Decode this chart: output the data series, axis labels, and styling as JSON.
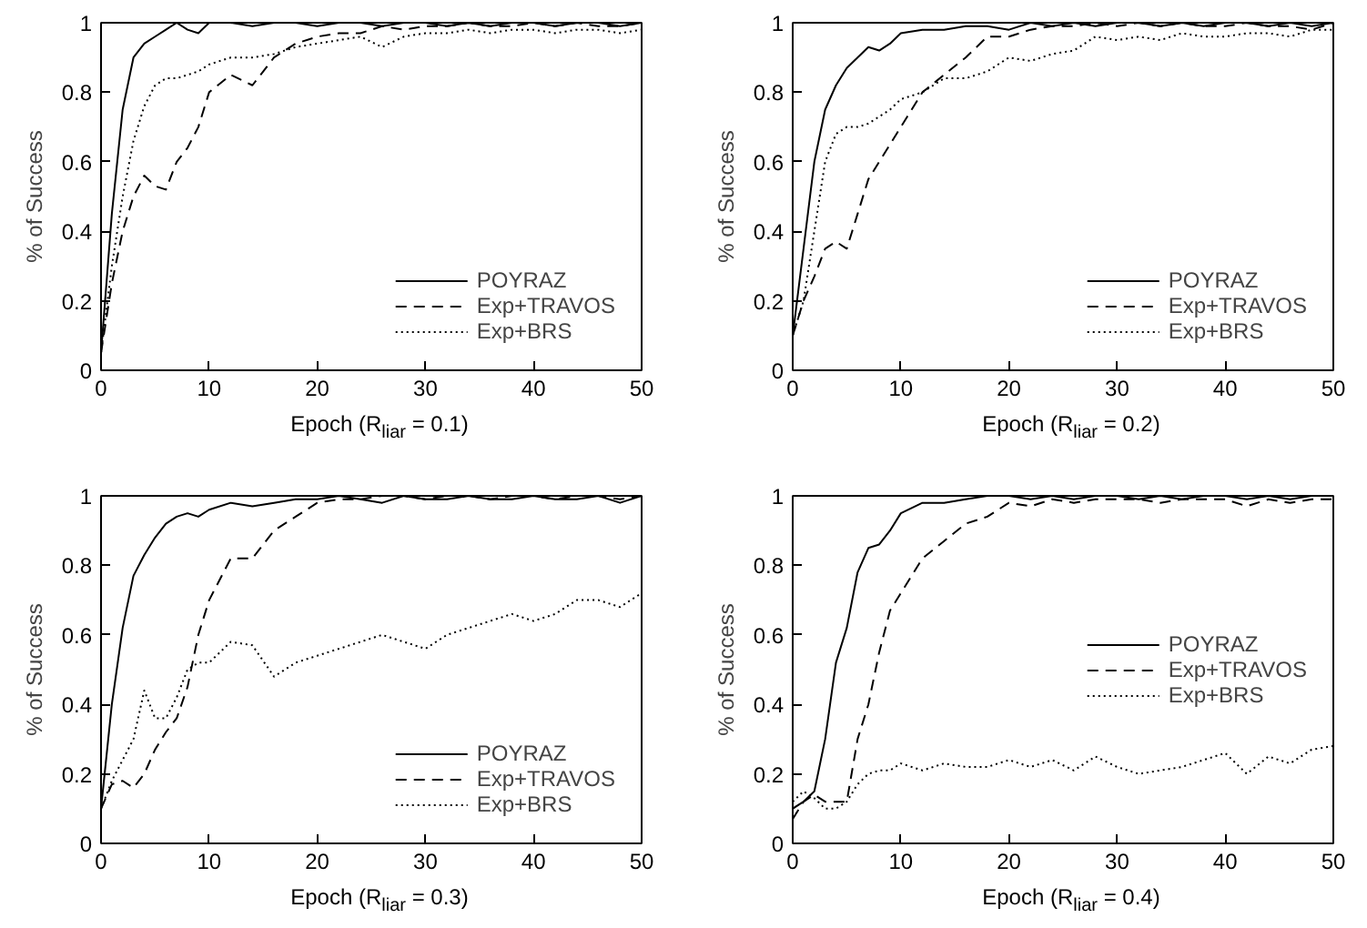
{
  "chart_data": [
    {
      "type": "line",
      "xlabel": "Epoch (R$_{liar}$ = 0.1)",
      "ylabel": "% of Success",
      "xlim": [
        0,
        50
      ],
      "ylim": [
        0,
        1
      ],
      "xticks": [
        0,
        10,
        20,
        30,
        40,
        50
      ],
      "yticks": [
        0,
        0.2,
        0.4,
        0.6,
        0.8,
        1
      ],
      "grid": false,
      "legend": "bottom right",
      "x": [
        0,
        1,
        2,
        3,
        4,
        5,
        6,
        7,
        8,
        9,
        10,
        12,
        14,
        16,
        18,
        20,
        22,
        24,
        26,
        28,
        30,
        32,
        34,
        36,
        38,
        40,
        42,
        44,
        46,
        48,
        50
      ],
      "series": [
        {
          "name": "POYRAZ",
          "color": "#000000",
          "line_style": "solid",
          "values": [
            0.05,
            0.45,
            0.75,
            0.9,
            0.94,
            0.96,
            0.98,
            1.0,
            0.98,
            0.97,
            1.0,
            1.0,
            0.99,
            1.0,
            1.0,
            0.99,
            1.0,
            1.0,
            0.99,
            1.0,
            1.0,
            0.99,
            1.0,
            0.99,
            1.0,
            1.0,
            0.99,
            1.0,
            1.0,
            0.99,
            1.0
          ]
        },
        {
          "name": "Exp+TRAVOS",
          "color": "#000000",
          "line_style": "dashed",
          "values": [
            0.05,
            0.25,
            0.4,
            0.5,
            0.56,
            0.53,
            0.52,
            0.6,
            0.64,
            0.7,
            0.8,
            0.85,
            0.82,
            0.9,
            0.94,
            0.96,
            0.97,
            0.97,
            0.99,
            0.98,
            0.99,
            0.99,
            1.0,
            0.99,
            0.99,
            1.0,
            0.99,
            1.0,
            0.99,
            0.99,
            1.0
          ]
        },
        {
          "name": "Exp+BRS",
          "color": "#000000",
          "line_style": "dotted",
          "values": [
            0.05,
            0.3,
            0.5,
            0.66,
            0.76,
            0.82,
            0.84,
            0.84,
            0.85,
            0.86,
            0.88,
            0.9,
            0.9,
            0.91,
            0.93,
            0.94,
            0.95,
            0.96,
            0.93,
            0.96,
            0.97,
            0.97,
            0.98,
            0.97,
            0.98,
            0.98,
            0.97,
            0.98,
            0.98,
            0.97,
            0.98
          ]
        }
      ]
    },
    {
      "type": "line",
      "xlabel": "Epoch (R$_{liar}$ = 0.2)",
      "ylabel": "% of Success",
      "xlim": [
        0,
        50
      ],
      "ylim": [
        0,
        1
      ],
      "xticks": [
        0,
        10,
        20,
        30,
        40,
        50
      ],
      "yticks": [
        0,
        0.2,
        0.4,
        0.6,
        0.8,
        1
      ],
      "grid": false,
      "legend": "bottom right",
      "x": [
        0,
        1,
        2,
        3,
        4,
        5,
        6,
        7,
        8,
        9,
        10,
        12,
        14,
        16,
        18,
        20,
        22,
        24,
        26,
        28,
        30,
        32,
        34,
        36,
        38,
        40,
        42,
        44,
        46,
        48,
        50
      ],
      "series": [
        {
          "name": "POYRAZ",
          "color": "#000000",
          "line_style": "solid",
          "values": [
            0.1,
            0.35,
            0.6,
            0.75,
            0.82,
            0.87,
            0.9,
            0.93,
            0.92,
            0.94,
            0.97,
            0.98,
            0.98,
            0.99,
            0.99,
            0.98,
            1.0,
            0.99,
            1.0,
            0.99,
            1.0,
            1.0,
            0.99,
            1.0,
            0.99,
            1.0,
            1.0,
            0.99,
            1.0,
            0.99,
            1.0
          ]
        },
        {
          "name": "Exp+TRAVOS",
          "color": "#000000",
          "line_style": "dashed",
          "values": [
            0.1,
            0.2,
            0.27,
            0.35,
            0.37,
            0.35,
            0.45,
            0.55,
            0.6,
            0.65,
            0.7,
            0.8,
            0.85,
            0.9,
            0.96,
            0.96,
            0.98,
            0.99,
            0.99,
            1.0,
            0.99,
            1.0,
            0.99,
            1.0,
            0.99,
            0.99,
            1.0,
            0.99,
            0.99,
            0.98,
            1.0
          ]
        },
        {
          "name": "Exp+BRS",
          "color": "#000000",
          "line_style": "dotted",
          "values": [
            0.1,
            0.2,
            0.4,
            0.6,
            0.68,
            0.7,
            0.7,
            0.71,
            0.73,
            0.75,
            0.78,
            0.8,
            0.84,
            0.84,
            0.86,
            0.9,
            0.89,
            0.91,
            0.92,
            0.96,
            0.95,
            0.96,
            0.95,
            0.97,
            0.96,
            0.96,
            0.97,
            0.97,
            0.96,
            0.98,
            0.98
          ]
        }
      ]
    },
    {
      "type": "line",
      "xlabel": "Epoch (R$_{liar}$ = 0.3)",
      "ylabel": "% of Success",
      "xlim": [
        0,
        50
      ],
      "ylim": [
        0,
        1
      ],
      "xticks": [
        0,
        10,
        20,
        30,
        40,
        50
      ],
      "yticks": [
        0,
        0.2,
        0.4,
        0.6,
        0.8,
        1
      ],
      "grid": false,
      "legend": "bottom right",
      "x": [
        0,
        1,
        2,
        3,
        4,
        5,
        6,
        7,
        8,
        9,
        10,
        12,
        14,
        16,
        18,
        20,
        22,
        24,
        26,
        28,
        30,
        32,
        34,
        36,
        38,
        40,
        42,
        44,
        46,
        48,
        50
      ],
      "series": [
        {
          "name": "POYRAZ",
          "color": "#000000",
          "line_style": "solid",
          "values": [
            0.1,
            0.4,
            0.62,
            0.77,
            0.83,
            0.88,
            0.92,
            0.94,
            0.95,
            0.94,
            0.96,
            0.98,
            0.97,
            0.98,
            0.99,
            0.99,
            1.0,
            0.99,
            0.98,
            1.0,
            0.99,
            0.99,
            1.0,
            0.99,
            0.99,
            1.0,
            0.99,
            0.99,
            1.0,
            0.98,
            1.0
          ]
        },
        {
          "name": "Exp+TRAVOS",
          "color": "#000000",
          "line_style": "dashed",
          "values": [
            0.1,
            0.17,
            0.18,
            0.16,
            0.2,
            0.27,
            0.32,
            0.36,
            0.45,
            0.6,
            0.7,
            0.82,
            0.82,
            0.9,
            0.94,
            0.98,
            0.99,
            0.99,
            1.0,
            1.0,
            0.99,
            1.0,
            1.0,
            0.99,
            1.0,
            1.0,
            0.99,
            1.0,
            1.0,
            0.99,
            1.0
          ]
        },
        {
          "name": "Exp+BRS",
          "color": "#000000",
          "line_style": "dotted",
          "values": [
            0.1,
            0.18,
            0.24,
            0.3,
            0.44,
            0.36,
            0.36,
            0.42,
            0.5,
            0.52,
            0.52,
            0.58,
            0.57,
            0.48,
            0.52,
            0.54,
            0.56,
            0.58,
            0.6,
            0.58,
            0.56,
            0.6,
            0.62,
            0.64,
            0.66,
            0.64,
            0.66,
            0.7,
            0.7,
            0.68,
            0.72
          ]
        }
      ]
    },
    {
      "type": "line",
      "xlabel": "Epoch (R$_{liar}$ = 0.4)",
      "ylabel": "% of Success",
      "xlim": [
        0,
        50
      ],
      "ylim": [
        0,
        1
      ],
      "xticks": [
        0,
        10,
        20,
        30,
        40,
        50
      ],
      "yticks": [
        0,
        0.2,
        0.4,
        0.6,
        0.8,
        1
      ],
      "grid": false,
      "legend": "right",
      "x": [
        0,
        1,
        2,
        3,
        4,
        5,
        6,
        7,
        8,
        9,
        10,
        12,
        14,
        16,
        18,
        20,
        22,
        24,
        26,
        28,
        30,
        32,
        34,
        36,
        38,
        40,
        42,
        44,
        46,
        48,
        50
      ],
      "series": [
        {
          "name": "POYRAZ",
          "color": "#000000",
          "line_style": "solid",
          "values": [
            0.1,
            0.12,
            0.15,
            0.3,
            0.52,
            0.62,
            0.78,
            0.85,
            0.86,
            0.9,
            0.95,
            0.98,
            0.98,
            0.99,
            1.0,
            1.0,
            0.99,
            1.0,
            0.99,
            1.0,
            1.0,
            0.99,
            1.0,
            0.99,
            1.0,
            1.0,
            0.99,
            1.0,
            0.99,
            1.0,
            1.0
          ]
        },
        {
          "name": "Exp+TRAVOS",
          "color": "#000000",
          "line_style": "dashed",
          "values": [
            0.07,
            0.12,
            0.14,
            0.12,
            0.12,
            0.12,
            0.3,
            0.4,
            0.55,
            0.67,
            0.72,
            0.82,
            0.87,
            0.92,
            0.94,
            0.98,
            0.97,
            0.99,
            0.98,
            0.99,
            0.99,
            0.99,
            0.98,
            0.99,
            0.99,
            0.99,
            0.97,
            0.99,
            0.98,
            0.99,
            0.99
          ]
        },
        {
          "name": "Exp+BRS",
          "color": "#000000",
          "line_style": "dotted",
          "values": [
            0.12,
            0.15,
            0.13,
            0.1,
            0.1,
            0.12,
            0.17,
            0.2,
            0.21,
            0.21,
            0.23,
            0.21,
            0.23,
            0.22,
            0.22,
            0.24,
            0.22,
            0.24,
            0.21,
            0.25,
            0.22,
            0.2,
            0.21,
            0.22,
            0.24,
            0.26,
            0.2,
            0.25,
            0.23,
            0.27,
            0.28
          ]
        }
      ]
    }
  ]
}
